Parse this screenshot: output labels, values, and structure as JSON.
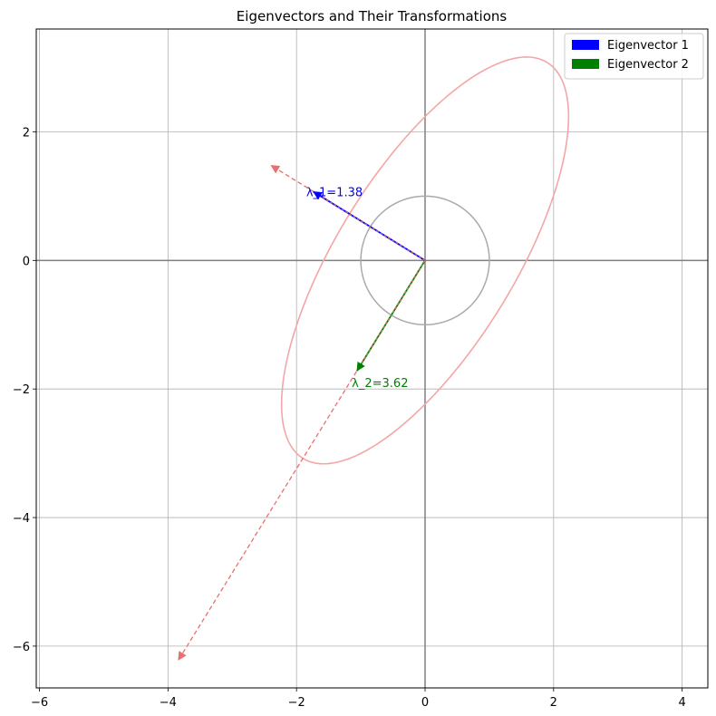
{
  "chart_data": {
    "type": "line",
    "title": "Eigenvectors and Their Transformations",
    "xlabel": "",
    "ylabel": "",
    "xlim": [
      -6.05,
      4.4
    ],
    "ylim": [
      -6.65,
      3.6
    ],
    "xticks": [
      -6,
      -4,
      -2,
      0,
      2,
      4
    ],
    "yticks": [
      -6,
      -4,
      -2,
      0,
      2
    ],
    "grid": true,
    "legend_position": "top-right",
    "unit_circle": {
      "center": [
        0,
        0
      ],
      "radius": 1,
      "color": "#aaaaaa"
    },
    "transformed_ellipse": {
      "axes": [
        [
          -2.4,
          1.48
        ],
        [
          -3.84,
          -6.22
        ]
      ],
      "color": "#f4a6a6"
    },
    "series": [
      {
        "name": "Eigenvector 1",
        "color": "#0000ff",
        "vector": [
          -1.74,
          1.07
        ],
        "transformed": [
          -2.4,
          1.48
        ],
        "label": "λ_1=1.38",
        "label_at": [
          -1.85,
          1.07
        ]
      },
      {
        "name": "Eigenvector 2",
        "color": "#008000",
        "vector": [
          -1.06,
          -1.72
        ],
        "transformed": [
          -3.84,
          -6.22
        ],
        "label": "λ_2=3.62",
        "label_at": [
          -1.14,
          -1.9
        ]
      }
    ],
    "transformed_color": "#e87070"
  }
}
